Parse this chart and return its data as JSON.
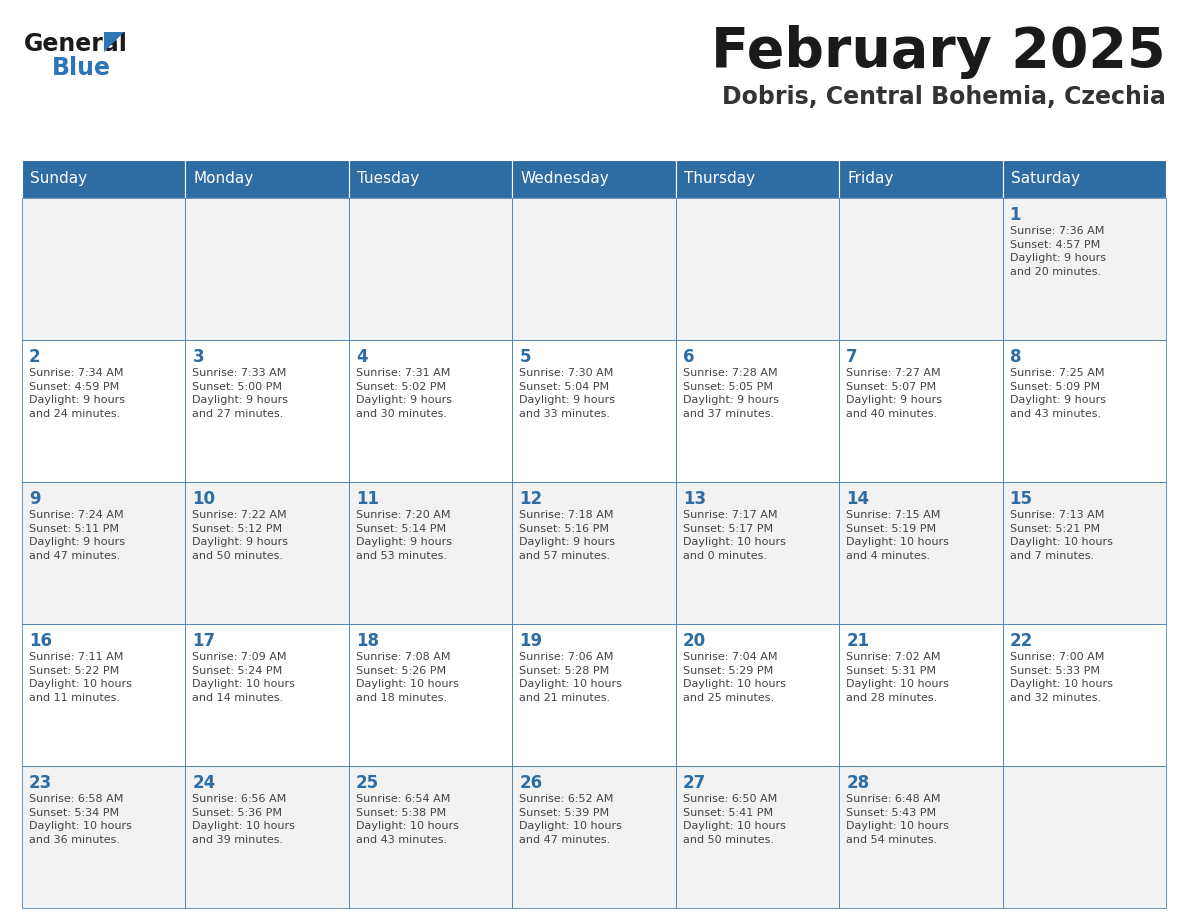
{
  "title": "February 2025",
  "subtitle": "Dobris, Central Bohemia, Czechia",
  "days_of_week": [
    "Sunday",
    "Monday",
    "Tuesday",
    "Wednesday",
    "Thursday",
    "Friday",
    "Saturday"
  ],
  "header_bg": "#2E6DA4",
  "header_text_color": "#FFFFFF",
  "cell_bg_row0": "#F2F2F2",
  "cell_bg_row1": "#FFFFFF",
  "cell_bg_row2": "#F2F2F2",
  "cell_bg_row3": "#FFFFFF",
  "cell_bg_row4": "#F2F2F2",
  "border_color": "#2E6DA4",
  "title_color": "#1a1a1a",
  "subtitle_color": "#333333",
  "day_number_color": "#2E6DA4",
  "cell_text_color": "#444444",
  "logo_general_color": "#1a1a1a",
  "logo_blue_color": "#2E75B6",
  "weeks": [
    [
      null,
      null,
      null,
      null,
      null,
      null,
      1
    ],
    [
      2,
      3,
      4,
      5,
      6,
      7,
      8
    ],
    [
      9,
      10,
      11,
      12,
      13,
      14,
      15
    ],
    [
      16,
      17,
      18,
      19,
      20,
      21,
      22
    ],
    [
      23,
      24,
      25,
      26,
      27,
      28,
      null
    ]
  ],
  "sunrise_data": {
    "1": "Sunrise: 7:36 AM\nSunset: 4:57 PM\nDaylight: 9 hours\nand 20 minutes.",
    "2": "Sunrise: 7:34 AM\nSunset: 4:59 PM\nDaylight: 9 hours\nand 24 minutes.",
    "3": "Sunrise: 7:33 AM\nSunset: 5:00 PM\nDaylight: 9 hours\nand 27 minutes.",
    "4": "Sunrise: 7:31 AM\nSunset: 5:02 PM\nDaylight: 9 hours\nand 30 minutes.",
    "5": "Sunrise: 7:30 AM\nSunset: 5:04 PM\nDaylight: 9 hours\nand 33 minutes.",
    "6": "Sunrise: 7:28 AM\nSunset: 5:05 PM\nDaylight: 9 hours\nand 37 minutes.",
    "7": "Sunrise: 7:27 AM\nSunset: 5:07 PM\nDaylight: 9 hours\nand 40 minutes.",
    "8": "Sunrise: 7:25 AM\nSunset: 5:09 PM\nDaylight: 9 hours\nand 43 minutes.",
    "9": "Sunrise: 7:24 AM\nSunset: 5:11 PM\nDaylight: 9 hours\nand 47 minutes.",
    "10": "Sunrise: 7:22 AM\nSunset: 5:12 PM\nDaylight: 9 hours\nand 50 minutes.",
    "11": "Sunrise: 7:20 AM\nSunset: 5:14 PM\nDaylight: 9 hours\nand 53 minutes.",
    "12": "Sunrise: 7:18 AM\nSunset: 5:16 PM\nDaylight: 9 hours\nand 57 minutes.",
    "13": "Sunrise: 7:17 AM\nSunset: 5:17 PM\nDaylight: 10 hours\nand 0 minutes.",
    "14": "Sunrise: 7:15 AM\nSunset: 5:19 PM\nDaylight: 10 hours\nand 4 minutes.",
    "15": "Sunrise: 7:13 AM\nSunset: 5:21 PM\nDaylight: 10 hours\nand 7 minutes.",
    "16": "Sunrise: 7:11 AM\nSunset: 5:22 PM\nDaylight: 10 hours\nand 11 minutes.",
    "17": "Sunrise: 7:09 AM\nSunset: 5:24 PM\nDaylight: 10 hours\nand 14 minutes.",
    "18": "Sunrise: 7:08 AM\nSunset: 5:26 PM\nDaylight: 10 hours\nand 18 minutes.",
    "19": "Sunrise: 7:06 AM\nSunset: 5:28 PM\nDaylight: 10 hours\nand 21 minutes.",
    "20": "Sunrise: 7:04 AM\nSunset: 5:29 PM\nDaylight: 10 hours\nand 25 minutes.",
    "21": "Sunrise: 7:02 AM\nSunset: 5:31 PM\nDaylight: 10 hours\nand 28 minutes.",
    "22": "Sunrise: 7:00 AM\nSunset: 5:33 PM\nDaylight: 10 hours\nand 32 minutes.",
    "23": "Sunrise: 6:58 AM\nSunset: 5:34 PM\nDaylight: 10 hours\nand 36 minutes.",
    "24": "Sunrise: 6:56 AM\nSunset: 5:36 PM\nDaylight: 10 hours\nand 39 minutes.",
    "25": "Sunrise: 6:54 AM\nSunset: 5:38 PM\nDaylight: 10 hours\nand 43 minutes.",
    "26": "Sunrise: 6:52 AM\nSunset: 5:39 PM\nDaylight: 10 hours\nand 47 minutes.",
    "27": "Sunrise: 6:50 AM\nSunset: 5:41 PM\nDaylight: 10 hours\nand 50 minutes.",
    "28": "Sunrise: 6:48 AM\nSunset: 5:43 PM\nDaylight: 10 hours\nand 54 minutes."
  },
  "fig_width": 11.88,
  "fig_height": 9.18,
  "dpi": 100
}
